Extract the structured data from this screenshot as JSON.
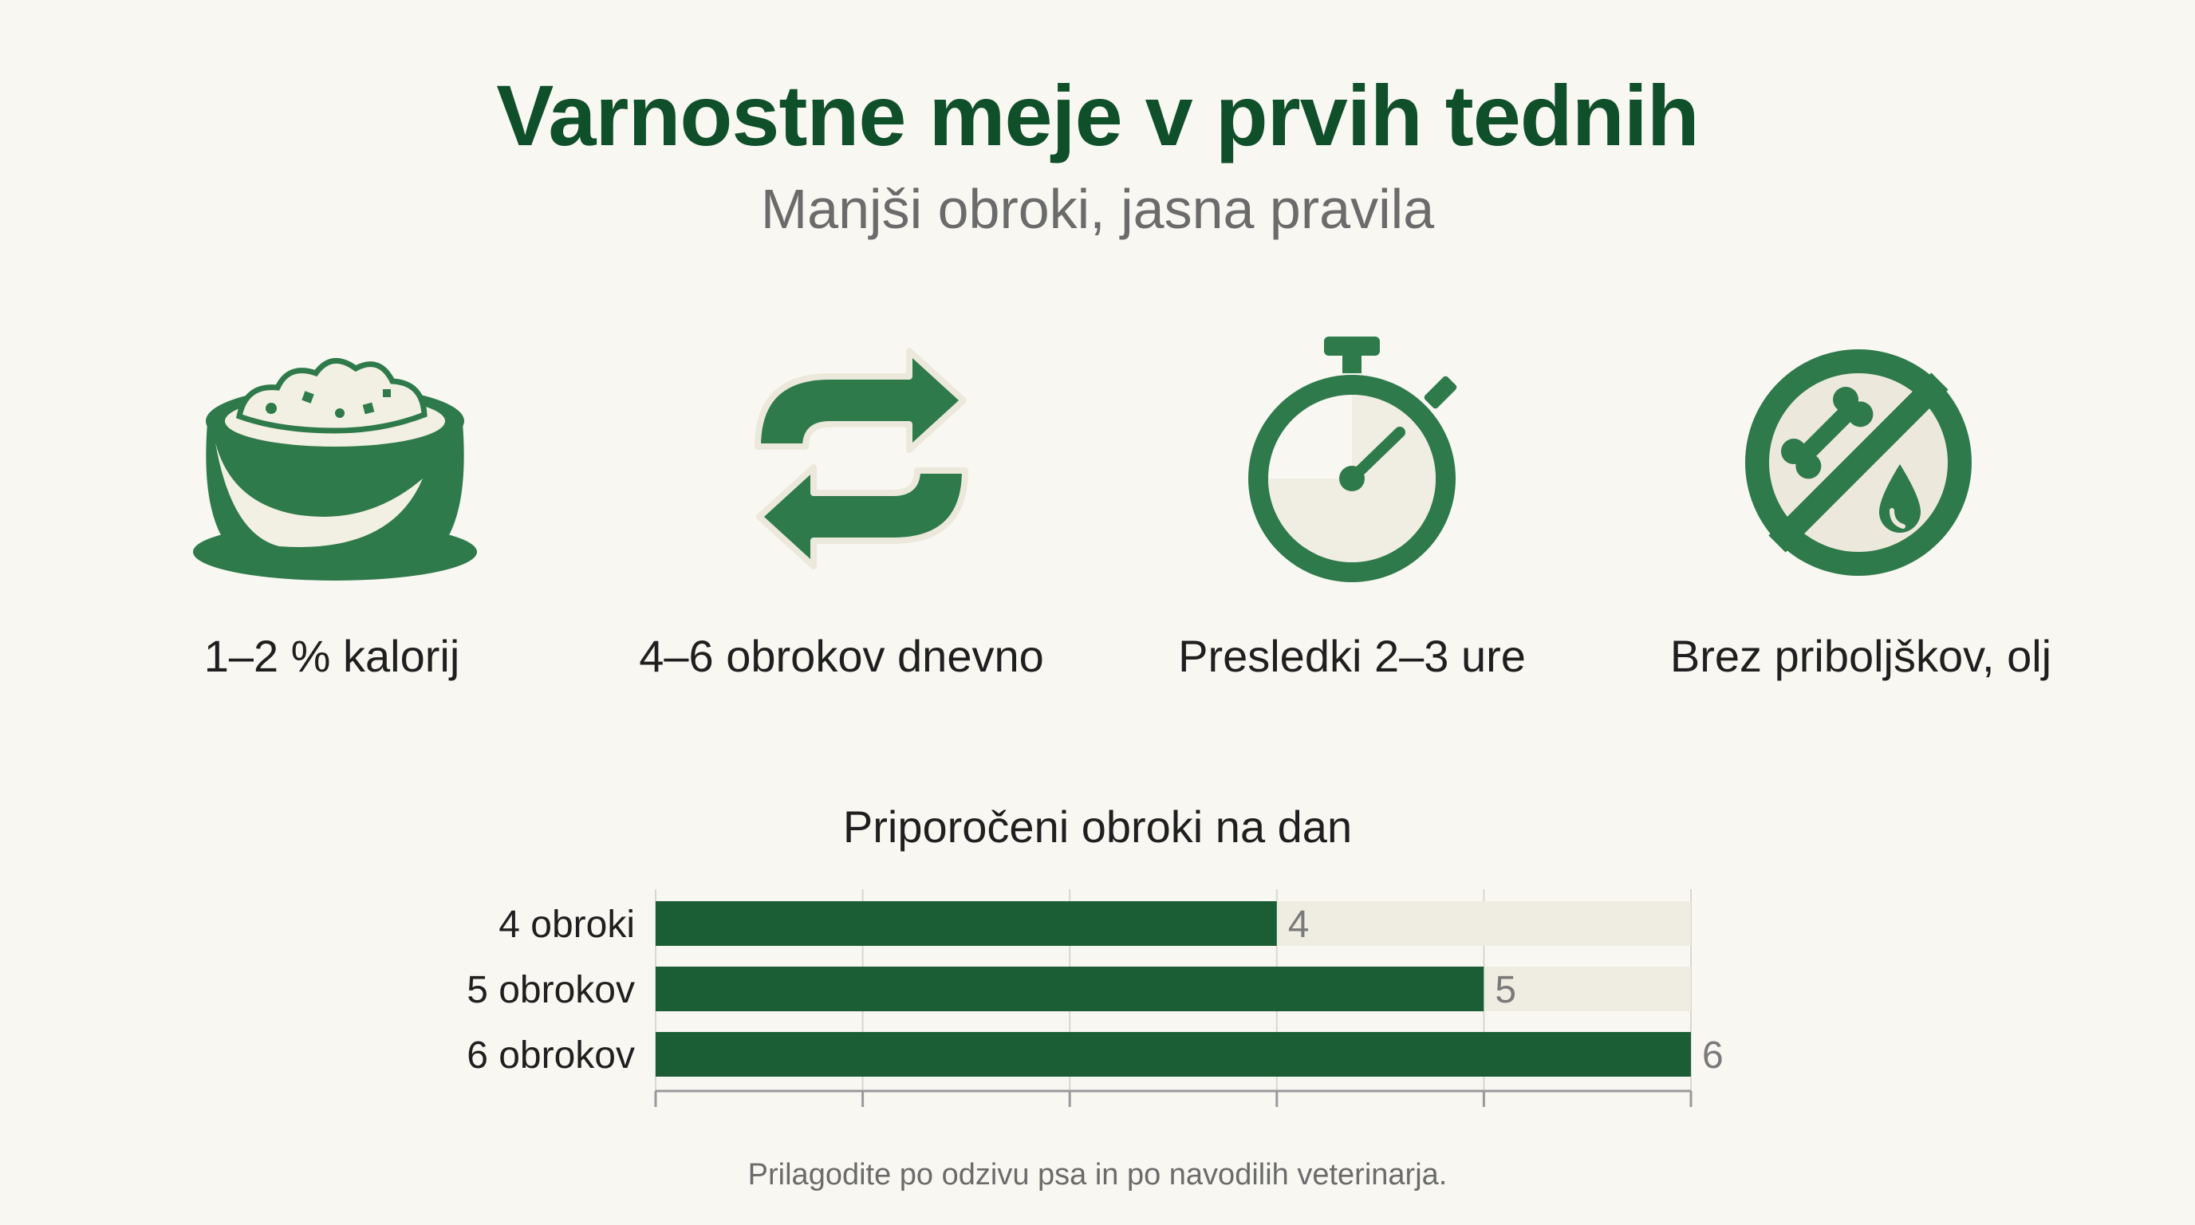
{
  "header": {
    "title": "Varnostne meje v prvih tednih",
    "subtitle": "Manjši obroki, jasna pravila"
  },
  "rules": [
    {
      "icon": "food-bowl-icon",
      "label": "1–2 % kalorij"
    },
    {
      "icon": "cycle-arrows-icon",
      "label": "4–6 obrokov dnevno"
    },
    {
      "icon": "stopwatch-icon",
      "label": "Presledki 2–3 ure"
    },
    {
      "icon": "no-treats-oil-icon",
      "label": "Brez priboljškov, olj"
    }
  ],
  "colors": {
    "primary_green": "#1b5e35",
    "title_green": "#0f4f2a",
    "track": "#efede2",
    "background": "#f8f7f2"
  },
  "chart_data": {
    "type": "bar",
    "orientation": "horizontal",
    "title": "Priporočeni obroki na dan",
    "categories": [
      "4 obroki",
      "5 obrokov",
      "6 obrokov"
    ],
    "values": [
      4,
      5,
      6
    ],
    "value_labels": [
      "4",
      "5",
      "6"
    ],
    "xlim": [
      1,
      6
    ],
    "grid": true,
    "xlabel": "",
    "ylabel": ""
  },
  "footnote": "Prilagodite po odzivu psa in po navodilih veterinarja."
}
